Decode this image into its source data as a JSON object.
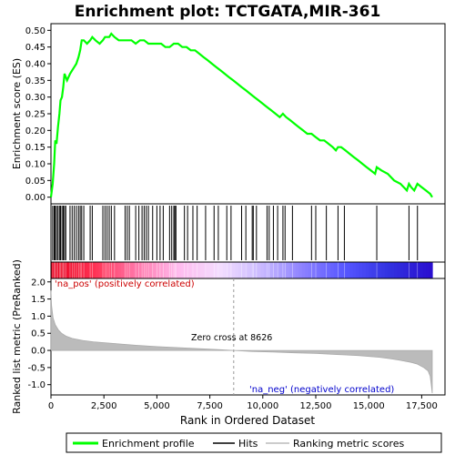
{
  "chart_data": {
    "type": "line",
    "title": "Enrichment plot: TCTGATA,MIR-361",
    "es_panel": {
      "ylabel": "Enrichment score (ES)",
      "ylim": [
        -0.02,
        0.52
      ],
      "yticks": [
        "0.00",
        "0.05",
        "0.10",
        "0.15",
        "0.20",
        "0.25",
        "0.30",
        "0.35",
        "0.40",
        "0.45",
        "0.50"
      ],
      "series": [
        {
          "name": "Enrichment profile",
          "color": "#00ff00",
          "x": [
            0,
            80,
            150,
            200,
            260,
            330,
            400,
            450,
            520,
            580,
            640,
            700,
            760,
            900,
            1000,
            1100,
            1200,
            1300,
            1380,
            1450,
            1550,
            1700,
            1850,
            1950,
            2100,
            2300,
            2450,
            2550,
            2650,
            2750,
            2850,
            3000,
            3200,
            3400,
            3600,
            3800,
            4000,
            4200,
            4400,
            4600,
            4800,
            5000,
            5200,
            5400,
            5600,
            5800,
            6000,
            6200,
            6400,
            6600,
            6800,
            7000,
            7200,
            7400,
            7600,
            7800,
            8000,
            8200,
            8400,
            8600,
            8800,
            9000,
            9200,
            9400,
            9600,
            9800,
            10000,
            10200,
            10400,
            10600,
            10800,
            10950,
            11100,
            11300,
            11500,
            11700,
            11900,
            12100,
            12300,
            12500,
            12700,
            12900,
            13100,
            13300,
            13450,
            13550,
            13700,
            13900,
            14100,
            14300,
            14500,
            14700,
            14900,
            15100,
            15300,
            15380,
            15600,
            15900,
            16200,
            16500,
            16800,
            16900,
            17000,
            17150,
            17300,
            17500,
            17700,
            17900,
            18000
          ],
          "y": [
            0.0,
            0.04,
            0.1,
            0.17,
            0.16,
            0.21,
            0.25,
            0.29,
            0.3,
            0.33,
            0.37,
            0.36,
            0.35,
            0.37,
            0.38,
            0.39,
            0.4,
            0.42,
            0.44,
            0.47,
            0.47,
            0.46,
            0.47,
            0.48,
            0.47,
            0.46,
            0.47,
            0.48,
            0.48,
            0.48,
            0.49,
            0.48,
            0.47,
            0.47,
            0.47,
            0.47,
            0.46,
            0.47,
            0.47,
            0.46,
            0.46,
            0.46,
            0.46,
            0.45,
            0.45,
            0.46,
            0.46,
            0.45,
            0.45,
            0.44,
            0.44,
            0.43,
            0.42,
            0.41,
            0.4,
            0.39,
            0.38,
            0.37,
            0.36,
            0.35,
            0.34,
            0.33,
            0.32,
            0.31,
            0.3,
            0.29,
            0.28,
            0.27,
            0.26,
            0.25,
            0.24,
            0.25,
            0.24,
            0.23,
            0.22,
            0.21,
            0.2,
            0.19,
            0.19,
            0.18,
            0.17,
            0.17,
            0.16,
            0.15,
            0.14,
            0.15,
            0.15,
            0.14,
            0.13,
            0.12,
            0.11,
            0.1,
            0.09,
            0.08,
            0.07,
            0.09,
            0.08,
            0.07,
            0.05,
            0.04,
            0.02,
            0.04,
            0.03,
            0.02,
            0.04,
            0.03,
            0.02,
            0.01,
            0.0
          ]
        }
      ]
    },
    "hits": [
      80,
      150,
      200,
      260,
      330,
      400,
      450,
      520,
      580,
      640,
      700,
      900,
      1000,
      1100,
      1200,
      1300,
      1380,
      1450,
      1550,
      1850,
      1950,
      2450,
      2550,
      2650,
      2750,
      2850,
      3000,
      3500,
      3600,
      3700,
      4000,
      4150,
      4300,
      4400,
      4500,
      4600,
      4800,
      5000,
      5150,
      5300,
      5600,
      5700,
      5800,
      5850,
      5900,
      6300,
      6450,
      6700,
      6900,
      7300,
      7700,
      7900,
      8300,
      8500,
      9000,
      9200,
      9500,
      9550,
      9700,
      10200,
      10300,
      10500,
      10700,
      10950,
      11050,
      11400,
      12300,
      12500,
      13000,
      13550,
      13850,
      15380,
      16900,
      17300
    ],
    "heatmap": {
      "stops": [
        "#e8001e",
        "#ff3355",
        "#ff77aa",
        "#ffbbee",
        "#f3ddff",
        "#c8b8ff",
        "#8a7fff",
        "#5555ff",
        "#3232e0",
        "#2a0fd0"
      ],
      "max_rank": 18000
    },
    "metric_panel": {
      "ylabel": "Ranked list metric (PreRanked)",
      "xlabel": "Rank in Ordered Dataset",
      "ylim": [
        -1.3,
        2.1
      ],
      "yticks": [
        "-1.0",
        "-0.5",
        "0.0",
        "0.5",
        "1.0",
        "1.5",
        "2.0"
      ],
      "xticks": [
        "0",
        "2,500",
        "5,000",
        "7,500",
        "10,000",
        "12,500",
        "15,000",
        "17,500"
      ],
      "xlim": [
        0,
        18600
      ],
      "ranks": [
        0,
        30,
        100,
        200,
        350,
        500,
        700,
        1000,
        1500,
        2000,
        3000,
        4000,
        5000,
        6000,
        7000,
        8000,
        8626,
        9500,
        10500,
        11500,
        12500,
        13500,
        14500,
        15500,
        16000,
        16500,
        17000,
        17300,
        17600,
        17800,
        17900,
        17950,
        18000
      ],
      "values": [
        1.75,
        1.3,
        0.95,
        0.75,
        0.6,
        0.5,
        0.42,
        0.35,
        0.29,
        0.25,
        0.2,
        0.15,
        0.11,
        0.08,
        0.05,
        0.02,
        0.0,
        -0.03,
        -0.05,
        -0.07,
        -0.09,
        -0.12,
        -0.15,
        -0.2,
        -0.24,
        -0.29,
        -0.35,
        -0.4,
        -0.5,
        -0.6,
        -0.75,
        -1.0,
        -1.25
      ],
      "zero_cross_label": "Zero cross at 8626",
      "zero_cross": 8626,
      "pos_label": "'na_pos' (positively correlated)",
      "neg_label": "'na_neg' (negatively correlated)"
    },
    "legend": {
      "items": [
        {
          "label": "Enrichment profile",
          "color": "#00ff00"
        },
        {
          "label": "Hits",
          "color": "#000000"
        },
        {
          "label": "Ranking metric scores",
          "color": "#bbbbbb"
        }
      ]
    }
  }
}
